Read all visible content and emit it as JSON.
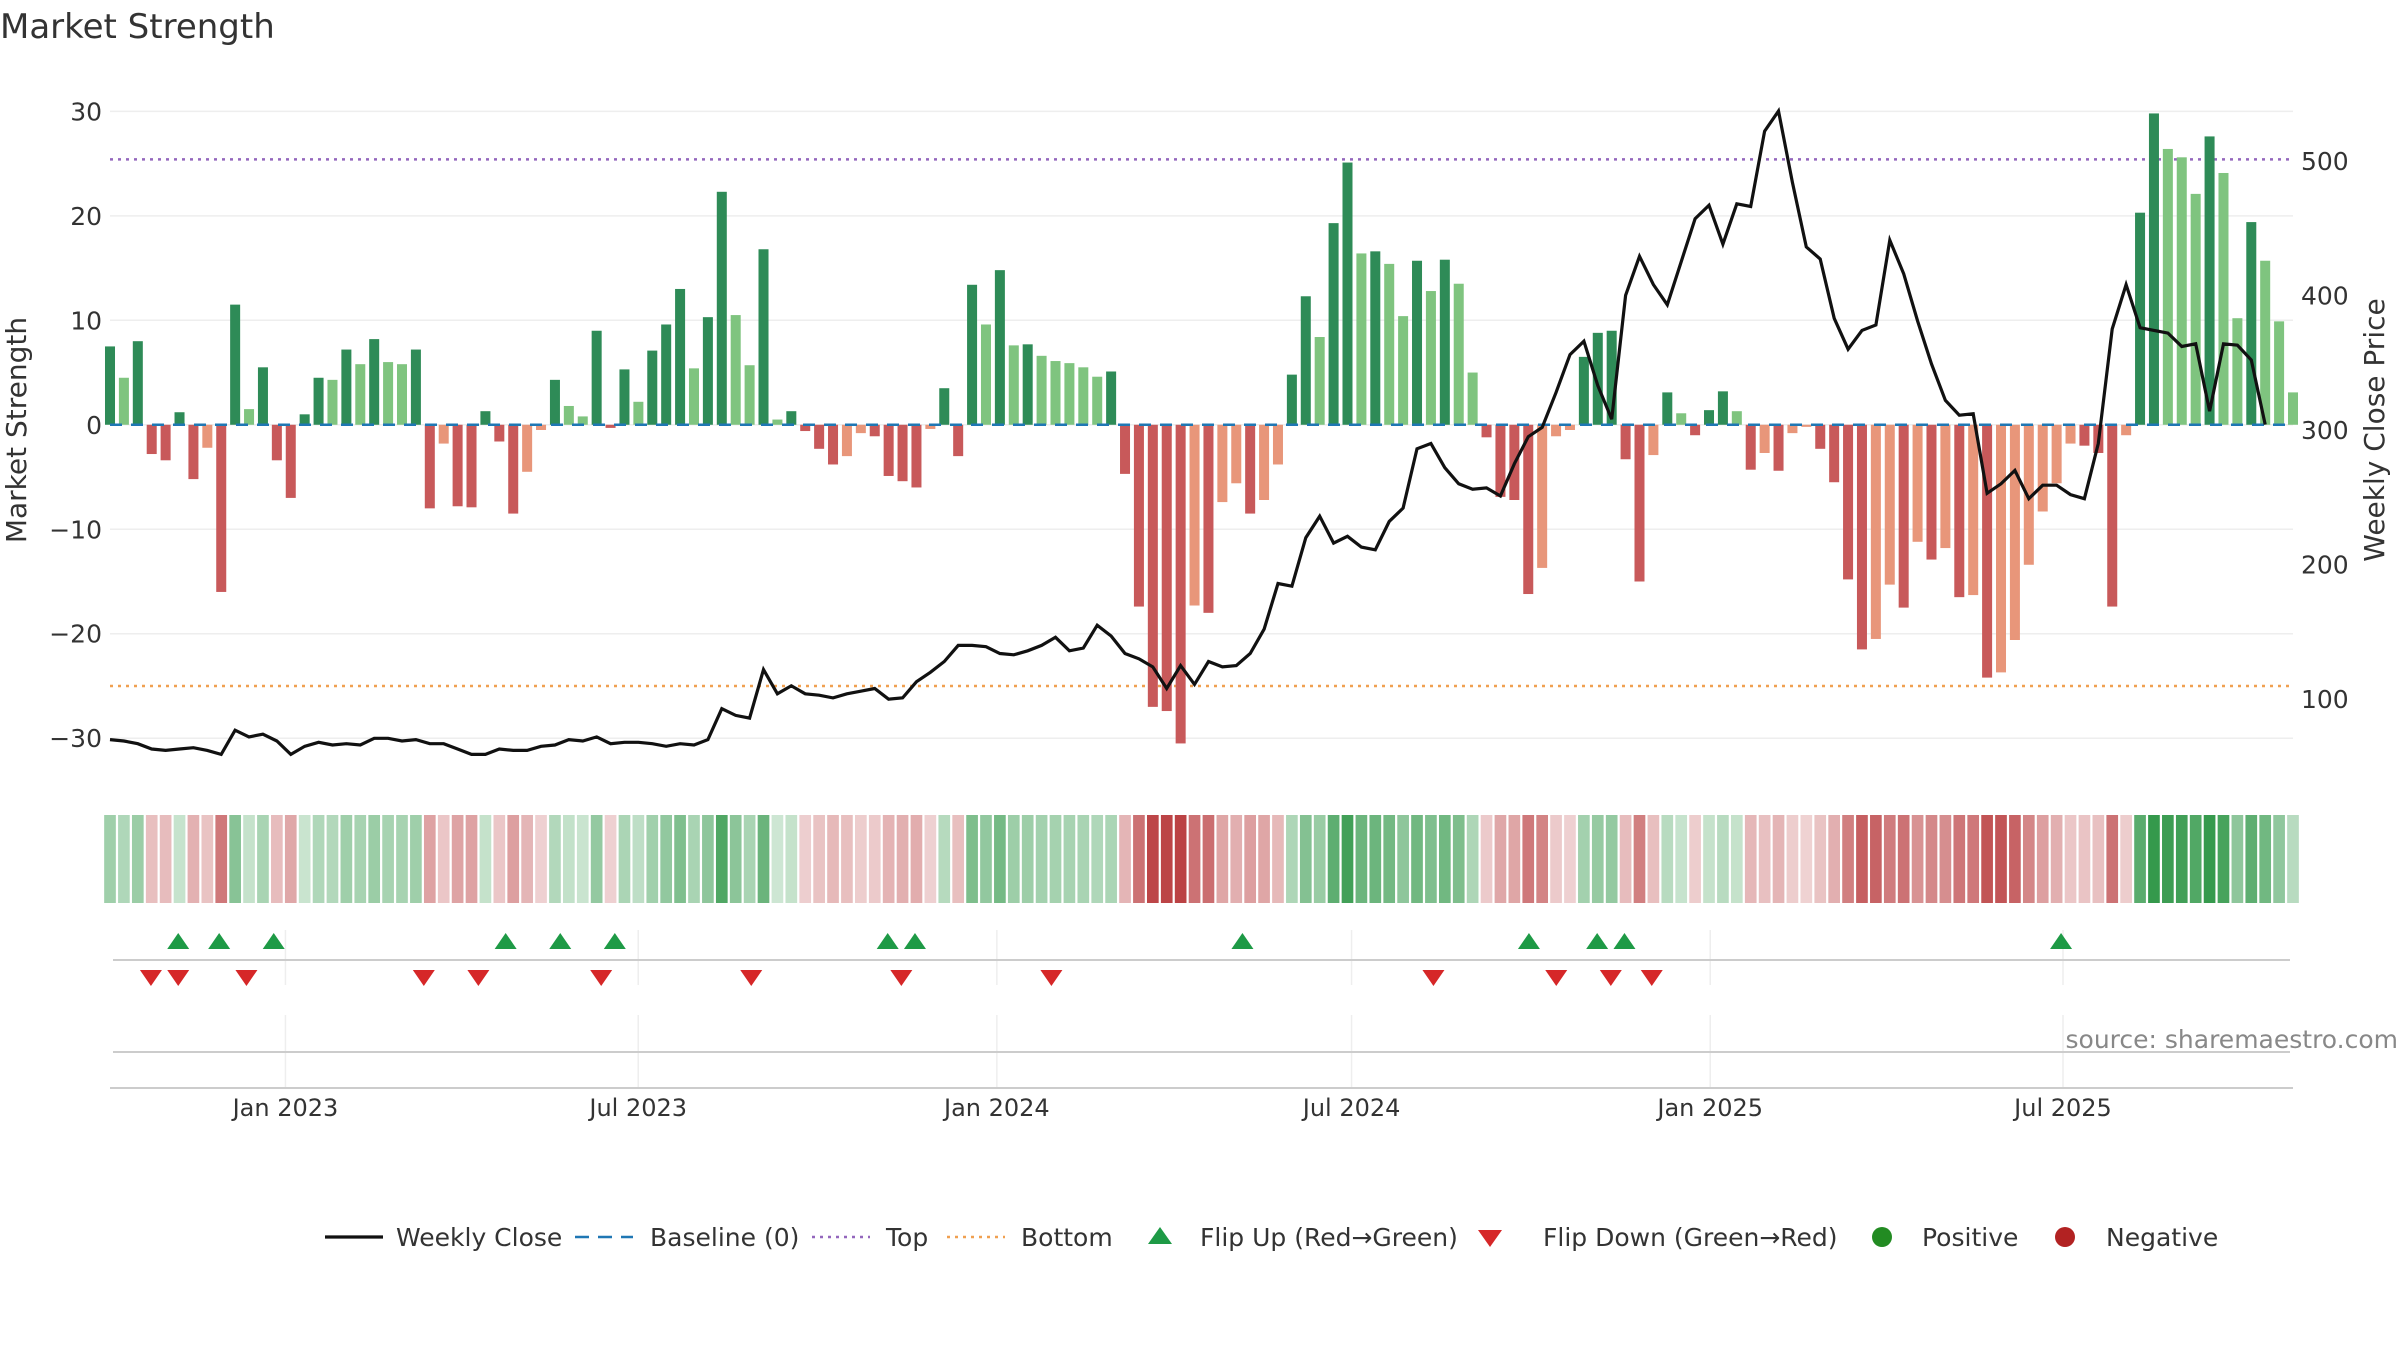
{
  "chart_data": {
    "type": "bar",
    "title": "Market Strength",
    "ylabel": "Market Strength",
    "y2label": "Weekly Close Price",
    "ylim": [
      -34,
      33
    ],
    "y2lim": [
      40,
      560
    ],
    "yticks": [
      30,
      20,
      10,
      0,
      -10,
      -20,
      -30
    ],
    "y2ticks": [
      500,
      400,
      300,
      200,
      100
    ],
    "x_start": "2022-10-03",
    "x_end": "2025-10-27",
    "xticks": [
      {
        "date": "2023-01-01",
        "label": "Jan 2023"
      },
      {
        "date": "2023-07-01",
        "label": "Jul 2023"
      },
      {
        "date": "2024-01-01",
        "label": "Jan 2024"
      },
      {
        "date": "2024-07-01",
        "label": "Jul 2024"
      },
      {
        "date": "2025-01-01",
        "label": "Jan 2025"
      },
      {
        "date": "2025-07-01",
        "label": "Jul 2025"
      }
    ],
    "top_line": 25.4,
    "bottom_line": -25,
    "strength_values": [
      7.5,
      4.5,
      8,
      -2.8,
      -3.4,
      1.2,
      -5.2,
      -2.2,
      -16,
      11.5,
      1.5,
      5.5,
      -3.4,
      -7,
      1,
      4.5,
      4.3,
      7.2,
      5.8,
      8.2,
      6,
      5.8,
      7.2,
      -8,
      -1.8,
      -7.8,
      -7.9,
      1.3,
      -1.6,
      -8.5,
      -4.5,
      -0.5,
      4.3,
      1.8,
      0.8,
      9,
      -0.3,
      5.3,
      2.2,
      7.1,
      9.6,
      13,
      5.4,
      10.3,
      22.3,
      10.5,
      5.7,
      16.8,
      0.5,
      1.3,
      -0.6,
      -2.3,
      -3.8,
      -3,
      -0.8,
      -1.1,
      -4.9,
      -5.4,
      -6,
      -0.4,
      3.5,
      -3,
      13.4,
      9.6,
      14.8,
      7.6,
      7.7,
      6.6,
      6.1,
      5.9,
      5.5,
      4.6,
      5.1,
      -4.7,
      -17.4,
      -27,
      -27.4,
      -30.5,
      -17.3,
      -18,
      -7.4,
      -5.6,
      -8.5,
      -7.2,
      -3.8,
      4.8,
      12.3,
      8.4,
      19.3,
      25.1,
      16.4,
      16.6,
      15.4,
      10.4,
      15.7,
      12.8,
      15.8,
      13.5,
      5,
      -1.2,
      -6.9,
      -7.2,
      -16.2,
      -13.7,
      -1.1,
      -0.5,
      6.5,
      8.8,
      9,
      -3.3,
      -15,
      -2.9,
      3.1,
      1.1,
      -1,
      1.4,
      3.2,
      1.3,
      -4.3,
      -2.7,
      -4.4,
      -0.8,
      -0.2,
      -2.3,
      -5.5,
      -14.8,
      -21.5,
      -20.5,
      -15.3,
      -17.5,
      -11.2,
      -12.9,
      -11.8,
      -16.5,
      -16.3,
      -24.2,
      -23.7,
      -20.6,
      -13.4,
      -8.3,
      -5.6,
      -1.8,
      -2,
      -2.7,
      -17.4,
      -1,
      20.3,
      29.8,
      26.4,
      25.6,
      22.1,
      27.6,
      24.1,
      10.2,
      19.4,
      15.7,
      9.9,
      3.1
    ],
    "price_values": [
      70,
      69,
      67,
      63,
      62,
      63,
      64,
      62,
      59,
      77,
      72,
      74,
      69,
      59,
      65,
      68,
      66,
      67,
      66,
      71,
      71,
      69,
      70,
      67,
      67,
      63,
      59,
      59,
      63,
      62,
      62,
      65,
      66,
      70,
      69,
      72,
      67,
      68,
      68,
      67,
      65,
      67,
      66,
      70,
      93,
      88,
      86,
      122,
      104,
      110,
      104,
      103,
      101,
      104,
      106,
      108,
      100,
      101,
      113,
      120,
      128,
      140,
      140,
      139,
      134,
      133,
      136,
      140,
      146,
      136,
      138,
      155,
      147,
      134,
      130,
      124,
      108,
      125,
      111,
      128,
      124,
      125,
      134,
      152,
      186,
      184,
      220,
      236,
      216,
      221,
      213,
      211,
      232,
      242,
      286,
      290,
      272,
      260,
      256,
      257,
      251,
      275,
      295,
      302,
      328,
      356,
      366,
      333,
      308,
      400,
      429,
      408,
      393,
      425,
      457,
      467,
      438,
      468,
      466,
      522,
      537,
      484,
      436,
      427,
      383,
      360,
      374,
      378,
      441,
      416,
      381,
      349,
      322,
      311,
      312,
      253,
      260,
      270,
      249,
      259,
      259,
      252,
      249,
      290,
      375,
      408,
      376,
      374,
      372,
      362,
      364,
      314,
      364,
      363,
      352,
      304
    ],
    "flip_up_dates": [
      "2022-11-07",
      "2022-11-28",
      "2022-12-26",
      "2023-04-24",
      "2023-05-22",
      "2023-06-19",
      "2023-11-06",
      "2023-11-20",
      "2024-05-06",
      "2024-09-30",
      "2024-11-04",
      "2024-11-18",
      "2025-06-30"
    ],
    "flip_down_dates": [
      "2022-10-24",
      "2022-11-07",
      "2022-12-12",
      "2023-03-13",
      "2023-04-10",
      "2023-06-12",
      "2023-08-28",
      "2023-11-13",
      "2024-01-29",
      "2024-08-12",
      "2024-10-14",
      "2024-11-11",
      "2024-12-02"
    ],
    "legend": [
      {
        "label": "Weekly Close",
        "kind": "line"
      },
      {
        "label": "Baseline (0)",
        "kind": "dash"
      },
      {
        "label": "Top",
        "kind": "dot-purple"
      },
      {
        "label": "Bottom",
        "kind": "dot-orange"
      },
      {
        "label": "Flip Up (Red→Green)",
        "kind": "tri-up"
      },
      {
        "label": "Flip Down (Green→Red)",
        "kind": "tri-down"
      },
      {
        "label": "Positive",
        "kind": "dot-green"
      },
      {
        "label": "Negative",
        "kind": "dot-red"
      }
    ],
    "legend_position": "bottom",
    "grid": true,
    "source": "source: sharemaestro.com",
    "colors": {
      "pos_strong": "#2e8b57",
      "pos_light": "#7fc47f",
      "neg_strong": "#c8595a",
      "neg_light": "#e8967a",
      "price": "#111111",
      "baseline": "#1f77b4",
      "top": "#9467bd",
      "bottom": "#f0a050",
      "flip_up": "#1e9a46",
      "flip_down": "#d62728",
      "positive_dot": "#228b22",
      "negative_dot": "#b22222"
    }
  }
}
